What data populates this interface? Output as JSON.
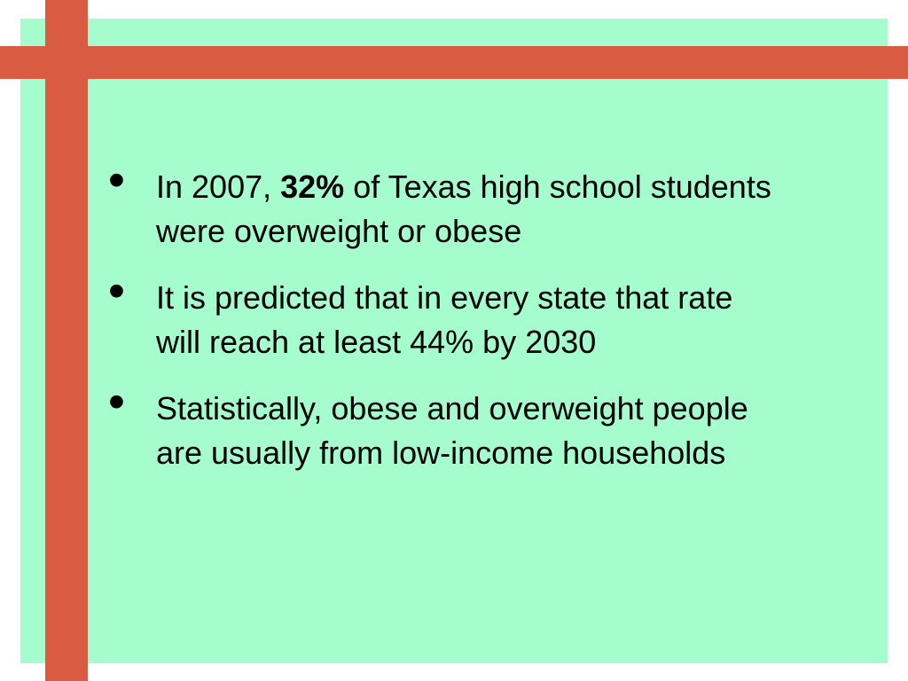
{
  "slide": {
    "colors": {
      "background": "#a5fdcd",
      "accent_bars": "#d95b41",
      "text": "#000000"
    },
    "bullet_glyph": "•",
    "bullets": [
      {
        "before": "In 2007, ",
        "emphasis": "32%",
        "after": " of Texas high school students were overweight or obese"
      },
      {
        "text": "It is predicted that in every state that rate will reach at least 44% by 2030"
      },
      {
        "text": "Statistically, obese and overweight people are usually from low-income households"
      }
    ]
  }
}
